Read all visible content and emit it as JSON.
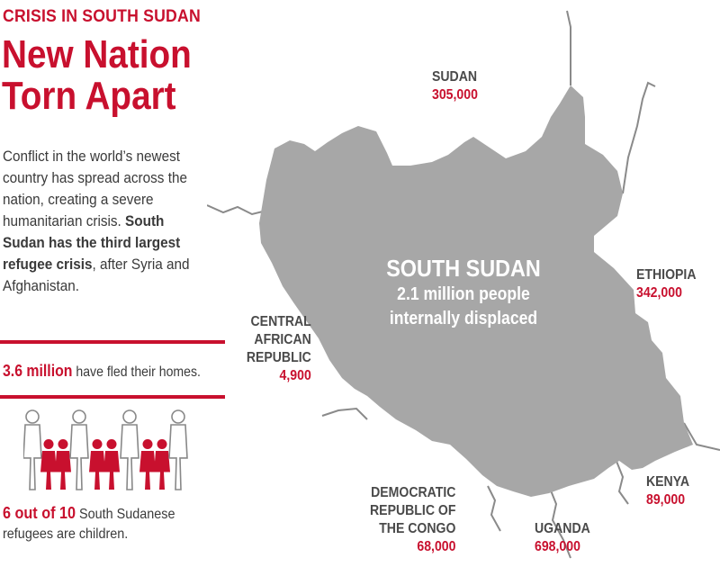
{
  "header": {
    "kicker": "CRISIS IN SOUTH SUDAN",
    "headline_line1": "New Nation",
    "headline_line2": "Torn Apart"
  },
  "intro": {
    "part1": "Conflict in the world’s newest country has spread across the nation, creating a severe humanitarian crisis. ",
    "bold": "South Sudan has the third largest refugee crisis",
    "part2": ", after Syria and Afghanistan."
  },
  "stats": {
    "fled_value": "3.6 million",
    "fled_text": " have fled their homes.",
    "children_value": "6 out of 10",
    "children_text": " South Sudanese refugees are children.",
    "children_fraction": 0.6
  },
  "people_icons": {
    "total": 10,
    "children": 6,
    "child_color": "#c8102e",
    "adult_color": "#888888"
  },
  "map": {
    "center_name": "SOUTH SUDAN",
    "center_line1": "2.1 million people",
    "center_line2": "internally displaced",
    "country_color": "#a7a7a7",
    "border_color": "#8a8a8a"
  },
  "neighbors": [
    {
      "id": "sudan",
      "name_lines": [
        "SUDAN"
      ],
      "value": "305,000"
    },
    {
      "id": "ethiopia",
      "name_lines": [
        "ETHIOPIA"
      ],
      "value": "342,000"
    },
    {
      "id": "car",
      "name_lines": [
        "CENTRAL",
        "AFRICAN",
        "REPUBLIC"
      ],
      "value": "4,900"
    },
    {
      "id": "drc",
      "name_lines": [
        "DEMOCRATIC",
        "REPUBLIC OF",
        "THE CONGO"
      ],
      "value": "68,000"
    },
    {
      "id": "uganda",
      "name_lines": [
        "UGANDA"
      ],
      "value": "698,000"
    },
    {
      "id": "kenya",
      "name_lines": [
        "KENYA"
      ],
      "value": "89,000"
    }
  ],
  "colors": {
    "accent": "#c8102e",
    "text": "#3a3a3a"
  }
}
